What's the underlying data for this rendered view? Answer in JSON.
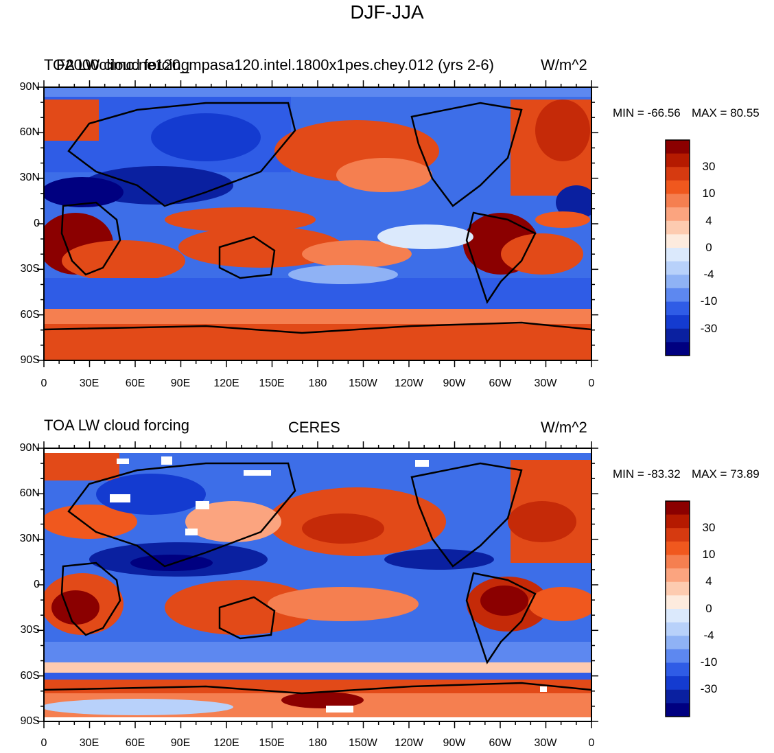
{
  "title": "DJF-JJA",
  "units": "W/m^2",
  "x_ticks": [
    "0",
    "30E",
    "60E",
    "90E",
    "120E",
    "150E",
    "180",
    "150W",
    "120W",
    "90W",
    "60W",
    "30W",
    "0"
  ],
  "y_ticks": [
    "90N",
    "60N",
    "30N",
    "0",
    "30S",
    "60S",
    "90S"
  ],
  "colorbar": {
    "labels": [
      "30",
      "10",
      "4",
      "0",
      "-4",
      "-10",
      "-30"
    ],
    "colors": [
      "#8b0000",
      "#b51a00",
      "#d63a10",
      "#f0581e",
      "#f57f50",
      "#fba47f",
      "#fdcbb0",
      "#fdebde",
      "#dbe9fc",
      "#b8d1fa",
      "#8fb2f5",
      "#5d88f0",
      "#2f5ce6",
      "#143bd0",
      "#0a20a0",
      "#000080"
    ]
  },
  "panels": [
    {
      "title_left": "TOA LW cloud forcing",
      "title_center": "F2000climo.ne120_mpasa120.intel.1800x1pes.chey.012 (yrs 2-6)",
      "title_right": "W/m^2",
      "min_text": "MIN = -66.56",
      "max_text": "MAX =  80.55"
    },
    {
      "title_left": "TOA LW cloud forcing",
      "title_center": "CERES",
      "title_right": "W/m^2",
      "min_text": "MIN = -83.32",
      "max_text": "MAX =  73.89"
    }
  ]
}
